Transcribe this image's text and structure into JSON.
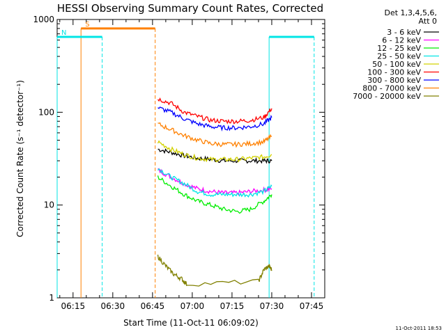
{
  "chart_data": {
    "type": "line",
    "title": "HESSI Observing Summary Count Rates, Corrected",
    "xlabel": "Start Time (11-Oct-11 06:09:02)",
    "ylabel": "Corrected Count Rate (s⁻¹ detector⁻¹)",
    "yscale": "log",
    "ylim": [
      1,
      1000
    ],
    "xlim": [
      "06:09",
      "07:50"
    ],
    "xticks": [
      "06:15",
      "06:30",
      "06:45",
      "07:00",
      "07:15",
      "07:30",
      "07:45"
    ],
    "yticks": [
      "1",
      "10",
      "100",
      "1000"
    ],
    "legend_header": [
      "Det 1,3,4,5,6,",
      "Att 0"
    ],
    "legend_position": "right",
    "timestamp": "11-Oct-2011 18:53",
    "series": [
      {
        "name": "3 - 6 keV",
        "color": "#000000",
        "x": [
          "06:47",
          "06:52",
          "06:57",
          "07:02",
          "07:07",
          "07:12",
          "07:17",
          "07:22",
          "07:27",
          "07:30"
        ],
        "y": [
          40,
          37,
          34,
          32,
          31,
          30,
          30,
          30,
          30,
          30
        ]
      },
      {
        "name": "6 - 12 keV",
        "color": "#ff00ff",
        "x": [
          "06:47",
          "06:52",
          "06:57",
          "07:02",
          "07:07",
          "07:12",
          "07:17",
          "07:22",
          "07:27",
          "07:30"
        ],
        "y": [
          24,
          20,
          17,
          15,
          14,
          13.5,
          13.5,
          14,
          14.5,
          15
        ]
      },
      {
        "name": "12 - 25 keV",
        "color": "#00ee00",
        "x": [
          "06:47",
          "06:52",
          "06:57",
          "07:02",
          "07:07",
          "07:12",
          "07:17",
          "07:22",
          "07:27",
          "07:30"
        ],
        "y": [
          20,
          16,
          13,
          11,
          10,
          9,
          8.5,
          9,
          11,
          13
        ]
      },
      {
        "name": "25 - 50 keV",
        "color": "#00e5e5",
        "x": [
          "06:47",
          "06:52",
          "06:57",
          "07:02",
          "07:07",
          "07:12",
          "07:17",
          "07:22",
          "07:27",
          "07:30"
        ],
        "y": [
          25,
          20,
          17,
          14,
          13,
          13,
          13,
          13,
          14,
          16
        ]
      },
      {
        "name": "50 - 100 keV",
        "color": "#d2d200",
        "x": [
          "06:47",
          "06:52",
          "06:57",
          "07:02",
          "07:07",
          "07:12",
          "07:17",
          "07:22",
          "07:27",
          "07:30"
        ],
        "y": [
          48,
          40,
          35,
          32,
          31,
          31,
          31,
          32,
          33,
          35
        ]
      },
      {
        "name": "100 - 300 keV",
        "color": "#ff0000",
        "x": [
          "06:47",
          "06:52",
          "06:57",
          "07:02",
          "07:07",
          "07:12",
          "07:17",
          "07:22",
          "07:27",
          "07:30"
        ],
        "y": [
          140,
          125,
          100,
          90,
          82,
          80,
          80,
          82,
          88,
          110
        ]
      },
      {
        "name": "300 - 800 keV",
        "color": "#0000ff",
        "x": [
          "06:47",
          "06:52",
          "06:57",
          "07:02",
          "07:07",
          "07:12",
          "07:17",
          "07:22",
          "07:27",
          "07:30"
        ],
        "y": [
          112,
          100,
          85,
          75,
          70,
          68,
          68,
          70,
          75,
          88
        ]
      },
      {
        "name": "800 - 7000 keV",
        "color": "#ff8000",
        "x": [
          "06:47",
          "06:52",
          "06:57",
          "07:02",
          "07:07",
          "07:12",
          "07:17",
          "07:22",
          "07:27",
          "07:30"
        ],
        "y": [
          75,
          65,
          56,
          50,
          46,
          45,
          45,
          46,
          48,
          55
        ]
      },
      {
        "name": "7000 - 20000 keV",
        "color": "#808000",
        "x": [
          "06:47",
          "06:50",
          "06:53",
          "06:56",
          "06:58",
          "07:25",
          "07:27",
          "07:29",
          "07:30"
        ],
        "y": [
          2.8,
          2.2,
          1.8,
          1.6,
          1.4,
          1.5,
          2.0,
          2.2,
          2.0
        ]
      }
    ],
    "annotations": [
      {
        "label": "S",
        "color": "#ff8000",
        "x_start": "06:18",
        "x_end": "06:46",
        "level": 800
      },
      {
        "label": "N",
        "color": "#00e5e5",
        "x_start": "06:09",
        "x_end": "06:26",
        "level": 650
      },
      {
        "label": "",
        "color": "#00e5e5",
        "x_start": "07:29",
        "x_end": "07:46",
        "level": 650
      }
    ]
  }
}
